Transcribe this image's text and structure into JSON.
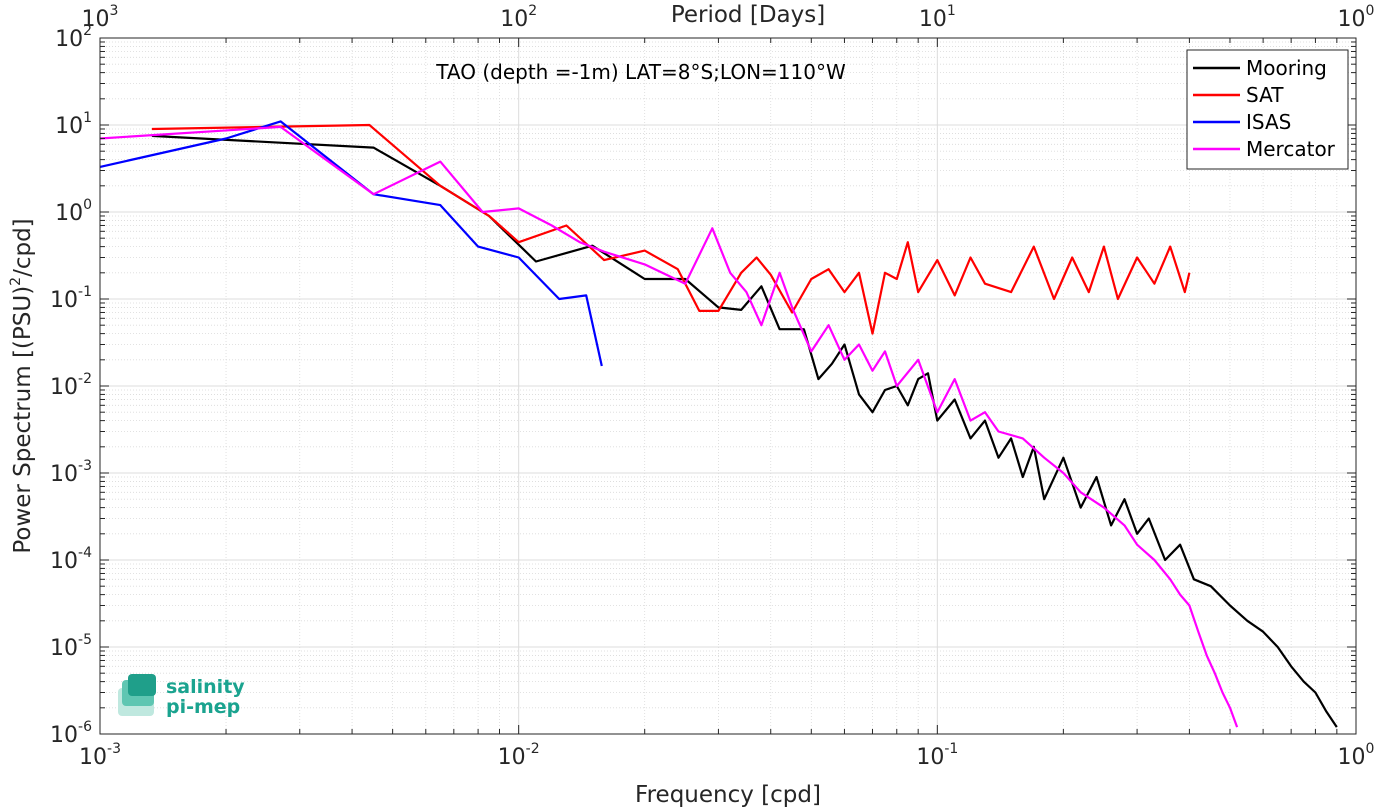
{
  "chart_data": {
    "type": "line",
    "title": "TAO (depth =-1m) LAT=8°S;LON=110°W",
    "xlabel": "Frequency [cpd]",
    "ylabel": "Power Spectrum [(PSU)",
    "ylabel_sup": "2",
    "ylabel_suffix": "/cpd]",
    "top_xlabel": "Period [Days]",
    "xscale": "log",
    "yscale": "log",
    "xlim": [
      0.001,
      1
    ],
    "ylim": [
      1e-06,
      100
    ],
    "grid": true,
    "legend_position": "top-right",
    "x_ticks": [
      {
        "value": 0.001,
        "base": "10",
        "exp": "-3"
      },
      {
        "value": 0.01,
        "base": "10",
        "exp": "-2"
      },
      {
        "value": 0.1,
        "base": "10",
        "exp": "-1"
      },
      {
        "value": 1,
        "base": "10",
        "exp": "0"
      }
    ],
    "y_ticks": [
      {
        "value": 1e-06,
        "base": "10",
        "exp": "-6"
      },
      {
        "value": 1e-05,
        "base": "10",
        "exp": "-5"
      },
      {
        "value": 0.0001,
        "base": "10",
        "exp": "-4"
      },
      {
        "value": 0.001,
        "base": "10",
        "exp": "-3"
      },
      {
        "value": 0.01,
        "base": "10",
        "exp": "-2"
      },
      {
        "value": 0.1,
        "base": "10",
        "exp": "-1"
      },
      {
        "value": 1,
        "base": "10",
        "exp": "0"
      },
      {
        "value": 10,
        "base": "10",
        "exp": "1"
      },
      {
        "value": 100,
        "base": "10",
        "exp": "2"
      }
    ],
    "top_ticks": [
      {
        "value": 1000,
        "base": "10",
        "exp": "3"
      },
      {
        "value": 100,
        "base": "10",
        "exp": "2"
      },
      {
        "value": 10,
        "base": "10",
        "exp": "1"
      },
      {
        "value": 1,
        "base": "10",
        "exp": "0"
      }
    ],
    "series": [
      {
        "name": "Mooring",
        "color": "#000000",
        "x": [
          0.00133,
          0.0045,
          0.0065,
          0.0085,
          0.011,
          0.015,
          0.02,
          0.025,
          0.03,
          0.034,
          0.038,
          0.042,
          0.048,
          0.052,
          0.056,
          0.06,
          0.065,
          0.07,
          0.075,
          0.08,
          0.085,
          0.09,
          0.095,
          0.1,
          0.11,
          0.12,
          0.13,
          0.14,
          0.15,
          0.16,
          0.17,
          0.18,
          0.2,
          0.22,
          0.24,
          0.26,
          0.28,
          0.3,
          0.32,
          0.35,
          0.38,
          0.41,
          0.45,
          0.5,
          0.55,
          0.6,
          0.65,
          0.7,
          0.75,
          0.8,
          0.85,
          0.9
        ],
        "values": [
          7.5,
          5.5,
          2.0,
          0.9,
          0.27,
          0.41,
          0.17,
          0.17,
          0.08,
          0.075,
          0.14,
          0.045,
          0.045,
          0.012,
          0.018,
          0.03,
          0.008,
          0.005,
          0.009,
          0.01,
          0.006,
          0.012,
          0.014,
          0.004,
          0.007,
          0.0025,
          0.004,
          0.0015,
          0.0025,
          0.0009,
          0.002,
          0.0005,
          0.0015,
          0.0004,
          0.0009,
          0.00025,
          0.0005,
          0.0002,
          0.0003,
          0.0001,
          0.00015,
          6e-05,
          5e-05,
          3e-05,
          2e-05,
          1.5e-05,
          1e-05,
          6e-06,
          4e-06,
          3e-06,
          1.8e-06,
          1.2e-06
        ]
      },
      {
        "name": "SAT",
        "color": "#ff0000",
        "x": [
          0.00133,
          0.0044,
          0.0065,
          0.0085,
          0.01,
          0.013,
          0.016,
          0.02,
          0.024,
          0.027,
          0.03,
          0.034,
          0.037,
          0.04,
          0.045,
          0.05,
          0.055,
          0.06,
          0.065,
          0.07,
          0.075,
          0.08,
          0.085,
          0.09,
          0.1,
          0.11,
          0.12,
          0.13,
          0.15,
          0.17,
          0.19,
          0.21,
          0.23,
          0.25,
          0.27,
          0.3,
          0.33,
          0.36,
          0.39,
          0.4
        ],
        "values": [
          9.0,
          10.0,
          2.0,
          0.9,
          0.45,
          0.7,
          0.28,
          0.36,
          0.22,
          0.073,
          0.073,
          0.2,
          0.3,
          0.19,
          0.07,
          0.17,
          0.22,
          0.12,
          0.2,
          0.04,
          0.2,
          0.17,
          0.45,
          0.12,
          0.28,
          0.11,
          0.3,
          0.15,
          0.12,
          0.4,
          0.1,
          0.3,
          0.12,
          0.4,
          0.1,
          0.3,
          0.15,
          0.4,
          0.12,
          0.2
        ]
      },
      {
        "name": "ISAS",
        "color": "#0000ff",
        "x": [
          0.001,
          0.002,
          0.0027,
          0.0045,
          0.0065,
          0.008,
          0.01,
          0.0125,
          0.0145,
          0.0158
        ],
        "values": [
          3.3,
          7.0,
          11.0,
          1.6,
          1.2,
          0.4,
          0.3,
          0.1,
          0.11,
          0.017
        ]
      },
      {
        "name": "Mercator",
        "color": "#ff00ff",
        "x": [
          0.001,
          0.0027,
          0.0045,
          0.0065,
          0.0082,
          0.01,
          0.012,
          0.014,
          0.016,
          0.02,
          0.025,
          0.029,
          0.032,
          0.035,
          0.038,
          0.042,
          0.045,
          0.05,
          0.055,
          0.06,
          0.065,
          0.07,
          0.075,
          0.08,
          0.09,
          0.1,
          0.11,
          0.12,
          0.13,
          0.14,
          0.16,
          0.18,
          0.2,
          0.22,
          0.25,
          0.28,
          0.3,
          0.33,
          0.36,
          0.38,
          0.4,
          0.42,
          0.44,
          0.46,
          0.48,
          0.5,
          0.52
        ],
        "values": [
          7.0,
          9.5,
          1.6,
          3.8,
          1.0,
          1.1,
          0.7,
          0.45,
          0.35,
          0.25,
          0.15,
          0.65,
          0.2,
          0.12,
          0.05,
          0.2,
          0.08,
          0.025,
          0.05,
          0.02,
          0.03,
          0.015,
          0.025,
          0.01,
          0.02,
          0.005,
          0.012,
          0.004,
          0.005,
          0.003,
          0.0025,
          0.0015,
          0.001,
          0.0006,
          0.0004,
          0.00025,
          0.00015,
          0.0001,
          6e-05,
          4e-05,
          3e-05,
          1.5e-05,
          8e-06,
          5e-06,
          3e-06,
          2e-06,
          1.2e-06
        ]
      }
    ]
  },
  "logo": {
    "line1": "salinity",
    "line2": "pi-mep"
  }
}
